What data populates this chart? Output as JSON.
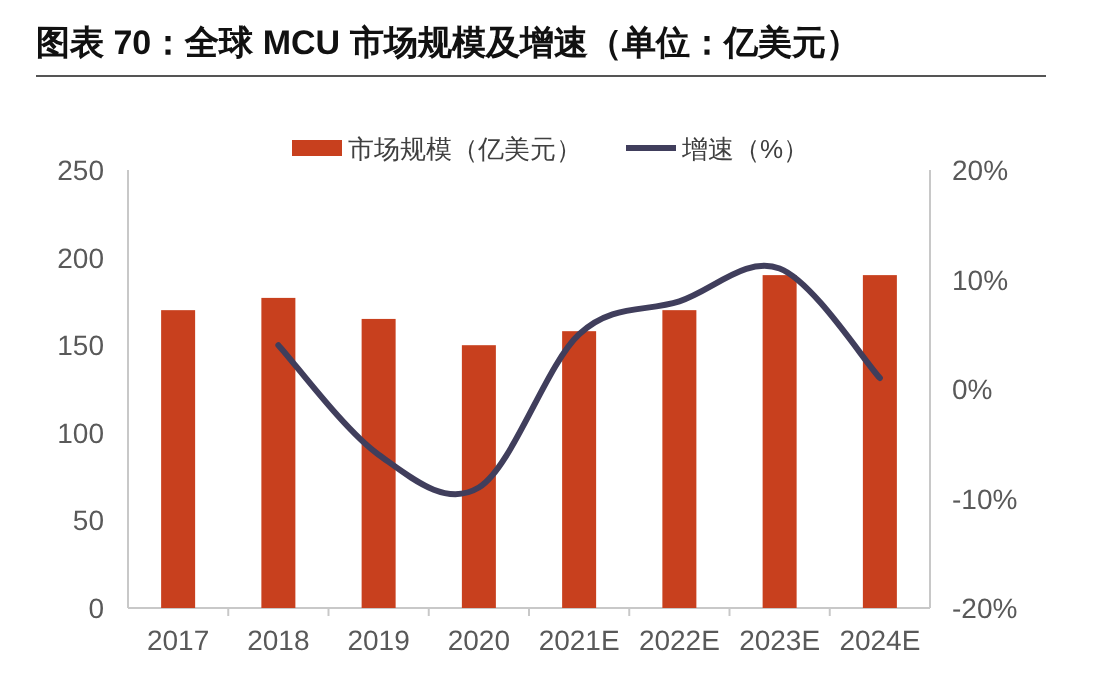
{
  "chart_data": {
    "type": "bar",
    "title": "图表 70：全球 MCU 市场规模及增速（单位：亿美元）",
    "categories": [
      "2017",
      "2018",
      "2019",
      "2020",
      "2021E",
      "2022E",
      "2023E",
      "2024E"
    ],
    "series": [
      {
        "name": "市场规模（亿美元）",
        "color": "#c8401e",
        "values": [
          170,
          177,
          165,
          150,
          158,
          170,
          190,
          190
        ]
      },
      {
        "name": "增速（%）",
        "type": "line",
        "axis": "y2",
        "color": "#403e5c",
        "values": [
          null,
          4,
          -6,
          -9,
          5,
          8,
          11,
          1
        ]
      }
    ],
    "ylim": [
      0,
      250
    ],
    "yticks": [
      0,
      50,
      100,
      150,
      200,
      250
    ],
    "y2lim": [
      -20,
      20
    ],
    "y2ticks": [
      {
        "value": -20,
        "label": "-20%"
      },
      {
        "value": -10,
        "label": "-10%"
      },
      {
        "value": 0,
        "label": "0%"
      },
      {
        "value": 10,
        "label": "10%"
      },
      {
        "value": 20,
        "label": "20%"
      }
    ],
    "legend": "top",
    "grid": false
  }
}
